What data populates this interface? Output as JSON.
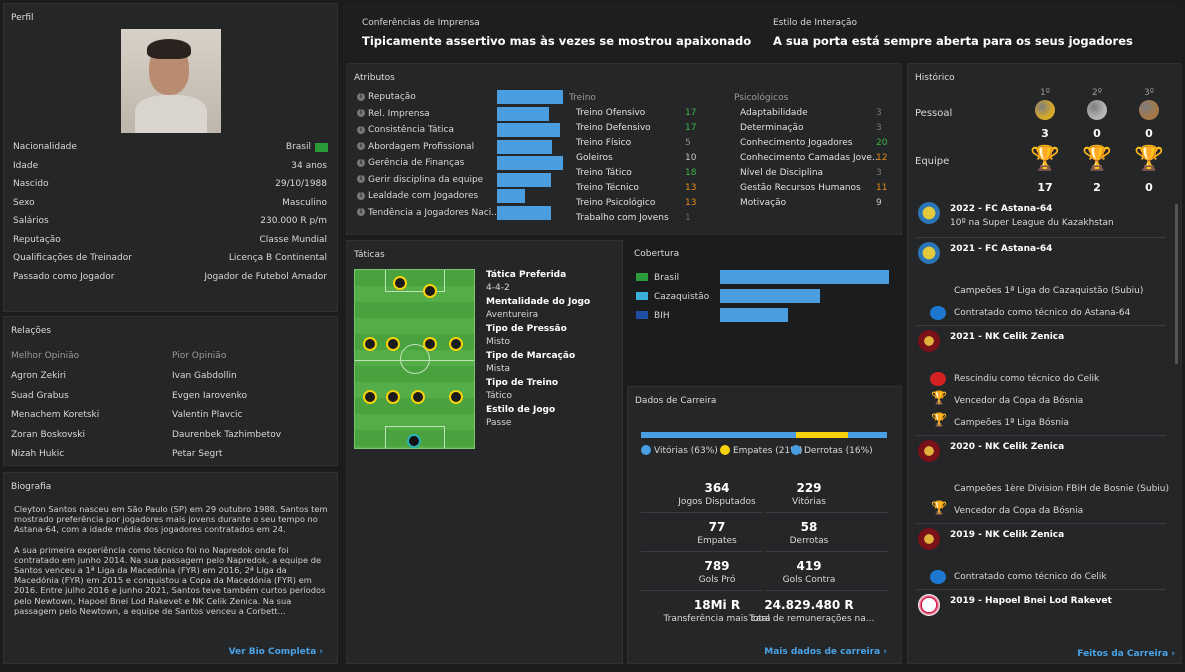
{
  "profile": {
    "title": "Perfil",
    "rows": [
      {
        "label": "Nacionalidade",
        "value": "Brasil"
      },
      {
        "label": "Idade",
        "value": "34 anos"
      },
      {
        "label": "Nascido",
        "value": "29/10/1988"
      },
      {
        "label": "Sexo",
        "value": "Masculino"
      },
      {
        "label": "Salários",
        "value": "230.000 R p/m"
      },
      {
        "label": "Reputação",
        "value": "Classe Mundial"
      },
      {
        "label": "Qualificações de Treinador",
        "value": "Licença B Continental"
      },
      {
        "label": "Passado como Jogador",
        "value": "Jogador de Futebol Amador"
      }
    ]
  },
  "relations": {
    "title": "Relações",
    "best_label": "Melhor Opinião",
    "worst_label": "Pior Opinião",
    "best": [
      "Agron Zekiri",
      "Suad Grabus",
      "Menachem Koretski",
      "Zoran Boskovski",
      "Nizah Hukic"
    ],
    "worst": [
      "Ivan Gabdollin",
      "Evgen Iarovenko",
      "Valentin Plavcic",
      "Daurenbek Tazhimbetov",
      "Petar Segrt"
    ]
  },
  "bio": {
    "title": "Biografia",
    "p1": "Cleyton Santos nasceu em São Paulo (SP) em 29 outubro 1988. Santos tem mostrado preferência por jogadores mais jovens durante o seu tempo no Astana-64, com a idade média dos jogadores contratados em 24.",
    "p2": "A sua primeira experiência como técnico foi no Napredok onde foi contratado em junho 2014. Na sua passagem pelo Napredok, a equipe de Santos venceu a 1ª Liga da Macedónia (FYR) em 2016, 2ª Liga da Macedónia (FYR) em 2015 e conquistou a Copa da Macedónia (FYR) em 2016. Entre julho 2016 e junho 2021, Santos teve também curtos períodos pelo Newtown, Hapoel Bnei Lod Rakevet e NK Celik Zenica. Na sua passagem pelo Newtown, a equipe de Santos venceu a Corbett...",
    "link": "Ver Bio Completa"
  },
  "press": {
    "label": "Conferências de Imprensa",
    "value": "Tipicamente assertivo mas às vezes se mostrou apaixonado"
  },
  "interaction": {
    "label": "Estilo de Interação",
    "value": "A sua porta está sempre aberta para os seus jogadores"
  },
  "attributes": {
    "title": "Atributos",
    "bars": [
      {
        "label": "Reputação",
        "value": 0.95
      },
      {
        "label": "Rel. Imprensa",
        "value": 0.75
      },
      {
        "label": "Consistência Tática",
        "value": 0.92
      },
      {
        "label": "Abordagem Profissional",
        "value": 0.8
      },
      {
        "label": "Gerência de Finanças",
        "value": 0.95
      },
      {
        "label": "Gerir disciplina da equipe",
        "value": 0.78
      },
      {
        "label": "Lealdade com Jogadores",
        "value": 0.4
      },
      {
        "label": "Tendência a Jogadores Naci...",
        "value": 0.78
      }
    ],
    "training_title": "Treino",
    "training": [
      {
        "label": "Treino Ofensivo",
        "value": "17",
        "color": "#3fb64a"
      },
      {
        "label": "Treino Defensivo",
        "value": "17",
        "color": "#3fb64a"
      },
      {
        "label": "Treino Físico",
        "value": "5",
        "color": "#8a8a8a"
      },
      {
        "label": "Goleiros",
        "value": "10",
        "color": "#c8c8c8"
      },
      {
        "label": "Treino Tático",
        "value": "18",
        "color": "#3fb64a"
      },
      {
        "label": "Treino Técnico",
        "value": "13",
        "color": "#e88a1a"
      },
      {
        "label": "Treino Psicológico",
        "value": "13",
        "color": "#e88a1a"
      },
      {
        "label": "Trabalho com Jovens",
        "value": "1",
        "color": "#666666"
      }
    ],
    "psych_title": "Psicológicos",
    "psych": [
      {
        "label": "Adaptabilidade",
        "value": "3",
        "color": "#777777"
      },
      {
        "label": "Determinação",
        "value": "3",
        "color": "#777777"
      },
      {
        "label": "Conhecimento Jogadores",
        "value": "20",
        "color": "#3fb64a"
      },
      {
        "label": "Conhecimento Camadas Jove...",
        "value": "12",
        "color": "#e88a1a"
      },
      {
        "label": "Nível de Disciplina",
        "value": "3",
        "color": "#777777"
      },
      {
        "label": "Gestão Recursos Humanos",
        "value": "11",
        "color": "#e88a1a"
      },
      {
        "label": "Motivação",
        "value": "9",
        "color": "#c8c8c8"
      }
    ]
  },
  "tactics": {
    "title": "Táticas",
    "items": [
      {
        "label": "Tática Preferida",
        "value": "4-4-2"
      },
      {
        "label": "Mentalidade do Jogo",
        "value": "Aventureira"
      },
      {
        "label": "Tipo de Pressão",
        "value": "Misto"
      },
      {
        "label": "Tipo de Marcação",
        "value": "Mista"
      },
      {
        "label": "Tipo de Treino",
        "value": "Tático"
      },
      {
        "label": "Estilo de Jogo",
        "value": "Passe"
      }
    ]
  },
  "coverage": {
    "title": "Cobertura",
    "items": [
      {
        "label": "Brasil",
        "value": 1.0
      },
      {
        "label": "Cazaquistão",
        "value": 0.59
      },
      {
        "label": "BIH",
        "value": 0.4
      }
    ]
  },
  "career": {
    "title": "Dados de Carreira",
    "split": {
      "wins": 63,
      "draws": 21,
      "losses": 16
    },
    "legend": [
      "Vitórias (63%)",
      "Empates (21%)",
      "Derrotas (16%)"
    ],
    "colors": {
      "wins": "#4a9ee0",
      "draws": "#f5d20a",
      "losses": "#4a9ee0"
    },
    "stats": [
      {
        "value": "364",
        "label": "Jogos Disputados"
      },
      {
        "value": "229",
        "label": "Vitórias"
      },
      {
        "value": "77",
        "label": "Empates"
      },
      {
        "value": "58",
        "label": "Derrotas"
      },
      {
        "value": "789",
        "label": "Gols Pró"
      },
      {
        "value": "419",
        "label": "Gols Contra"
      },
      {
        "value": "18Mi R",
        "label": "Transferência mais cara"
      },
      {
        "value": "24.829.480 R",
        "label": "Total de remunerações na..."
      }
    ],
    "link": "Mais dados de carreira"
  },
  "history": {
    "title": "Histórico",
    "medal_headers": [
      "1º",
      "2º",
      "3º"
    ],
    "personal_label": "Pessoal",
    "personal": [
      "3",
      "0",
      "0"
    ],
    "team_label": "Equipe",
    "team": [
      "17",
      "2",
      "0"
    ],
    "entries": [
      {
        "kind": "club",
        "title": "2022 - FC Astana-64",
        "sub": "10º na Super League du Kazakhstan"
      },
      {
        "kind": "club",
        "title": "2021 - FC Astana-64",
        "sub": ""
      },
      {
        "kind": "event",
        "icon": "none",
        "text": "Campeões 1ª Liga do Cazaquistão (Subiu)"
      },
      {
        "kind": "event",
        "icon": "briefcase-blue",
        "text": "Contratado como técnico do Astana-64"
      },
      {
        "kind": "club",
        "title": "2021 - NK Celik Zenica",
        "sub": ""
      },
      {
        "kind": "event",
        "icon": "briefcase-red",
        "text": "Rescindiu como técnico do Celik"
      },
      {
        "kind": "event",
        "icon": "trophy",
        "text": "Vencedor da Copa da Bósnia"
      },
      {
        "kind": "event",
        "icon": "trophy",
        "text": "Campeões 1ª Liga Bósnia"
      },
      {
        "kind": "club",
        "title": "2020 - NK Celik Zenica",
        "sub": ""
      },
      {
        "kind": "event",
        "icon": "none",
        "text": "Campeões 1ère Division FBiH de Bosnie (Subiu)"
      },
      {
        "kind": "event",
        "icon": "trophy",
        "text": "Vencedor da Copa da Bósnia"
      },
      {
        "kind": "club",
        "title": "2019 - NK Celik Zenica",
        "sub": ""
      },
      {
        "kind": "event",
        "icon": "briefcase-blue",
        "text": "Contratado como técnico do Celik"
      },
      {
        "kind": "club",
        "title": "2019 - Hapoel Bnei Lod Rakevet",
        "sub": ""
      }
    ],
    "link": "Feitos da Carreira"
  }
}
